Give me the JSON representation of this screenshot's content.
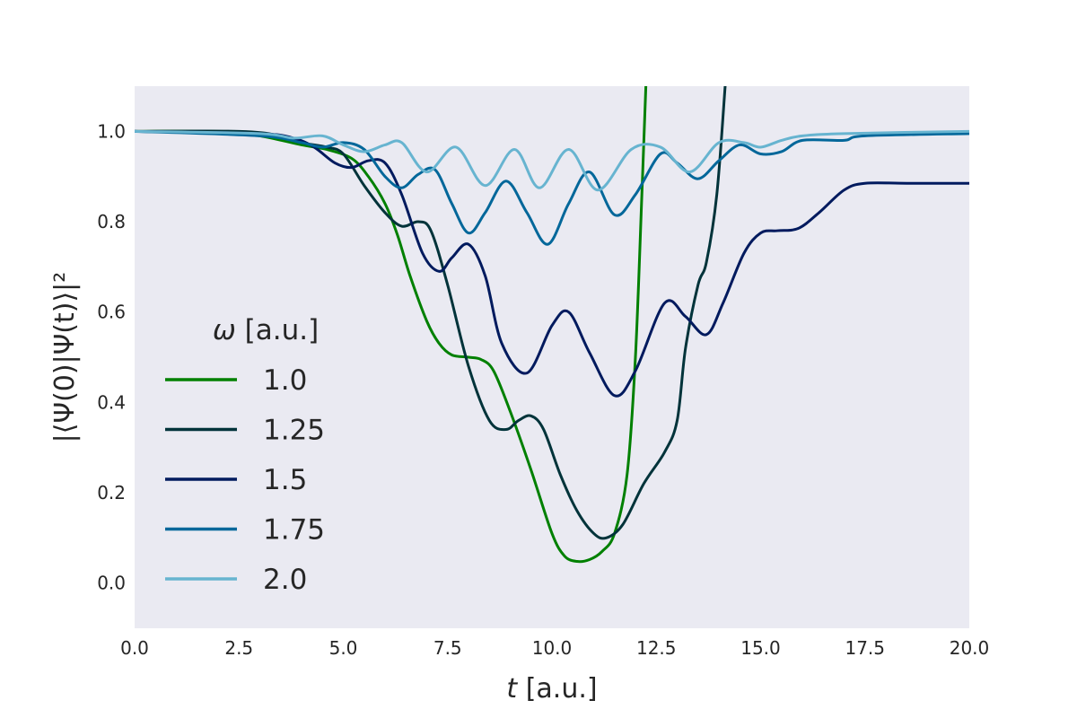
{
  "chart_data": {
    "type": "line",
    "xlabel_var": "t",
    "xlabel_unit": " [a.u.]",
    "ylabel": "|⟨Ψ(0)|Ψ(t)⟩|²",
    "xlim": [
      0,
      20
    ],
    "ylim": [
      -0.1,
      1.1
    ],
    "xticks": [
      0,
      2.5,
      5,
      7.5,
      10,
      12.5,
      15,
      17.5,
      20
    ],
    "xtick_labels": [
      "0.0",
      "2.5",
      "5.0",
      "7.5",
      "10.0",
      "12.5",
      "15.0",
      "17.5",
      "20.0"
    ],
    "yticks": [
      0,
      0.2,
      0.4,
      0.6,
      0.8,
      1.0
    ],
    "ytick_labels": [
      "0.0",
      "0.2",
      "0.4",
      "0.6",
      "0.8",
      "1.0"
    ],
    "grid": false,
    "background": "#eaeaf2",
    "legend": {
      "title_var": "ω",
      "title_unit": " [a.u.]",
      "placement": "center-left"
    },
    "series": [
      {
        "name": "1.0",
        "color": "#008000",
        "points": [
          [
            0,
            1.0
          ],
          [
            2.0,
            1.0
          ],
          [
            3.0,
            0.99
          ],
          [
            4.0,
            0.97
          ],
          [
            4.6,
            0.96
          ],
          [
            5.2,
            0.94
          ],
          [
            5.6,
            0.9
          ],
          [
            6.0,
            0.84
          ],
          [
            6.3,
            0.77
          ],
          [
            6.6,
            0.68
          ],
          [
            7.0,
            0.58
          ],
          [
            7.3,
            0.53
          ],
          [
            7.6,
            0.505
          ],
          [
            8.0,
            0.5
          ],
          [
            8.3,
            0.495
          ],
          [
            8.6,
            0.47
          ],
          [
            9.0,
            0.38
          ],
          [
            9.5,
            0.25
          ],
          [
            10.0,
            0.11
          ],
          [
            10.3,
            0.06
          ],
          [
            10.6,
            0.048
          ],
          [
            10.9,
            0.052
          ],
          [
            11.2,
            0.07
          ],
          [
            11.5,
            0.11
          ],
          [
            11.8,
            0.24
          ],
          [
            12.0,
            0.5
          ],
          [
            12.15,
            0.85
          ],
          [
            12.25,
            1.1
          ]
        ]
      },
      {
        "name": "1.25",
        "color": "#00333a",
        "points": [
          [
            0,
            1.0
          ],
          [
            2.5,
            1.0
          ],
          [
            3.5,
            0.99
          ],
          [
            4.0,
            0.975
          ],
          [
            4.6,
            0.965
          ],
          [
            5.0,
            0.95
          ],
          [
            5.5,
            0.88
          ],
          [
            6.0,
            0.82
          ],
          [
            6.4,
            0.79
          ],
          [
            6.8,
            0.8
          ],
          [
            7.1,
            0.78
          ],
          [
            7.5,
            0.66
          ],
          [
            8.0,
            0.48
          ],
          [
            8.5,
            0.36
          ],
          [
            8.9,
            0.34
          ],
          [
            9.2,
            0.36
          ],
          [
            9.5,
            0.37
          ],
          [
            9.8,
            0.34
          ],
          [
            10.2,
            0.24
          ],
          [
            10.6,
            0.16
          ],
          [
            11.0,
            0.11
          ],
          [
            11.3,
            0.1
          ],
          [
            11.7,
            0.13
          ],
          [
            12.2,
            0.22
          ],
          [
            12.7,
            0.29
          ],
          [
            13.0,
            0.36
          ],
          [
            13.2,
            0.52
          ],
          [
            13.5,
            0.66
          ],
          [
            13.7,
            0.71
          ],
          [
            13.95,
            0.86
          ],
          [
            14.15,
            1.1
          ]
        ]
      },
      {
        "name": "1.5",
        "color": "#001a5e",
        "points": [
          [
            0,
            1.0
          ],
          [
            3.0,
            0.995
          ],
          [
            3.8,
            0.985
          ],
          [
            4.3,
            0.965
          ],
          [
            4.8,
            0.93
          ],
          [
            5.2,
            0.92
          ],
          [
            5.6,
            0.935
          ],
          [
            6.0,
            0.93
          ],
          [
            6.4,
            0.86
          ],
          [
            6.9,
            0.73
          ],
          [
            7.3,
            0.69
          ],
          [
            7.6,
            0.72
          ],
          [
            8.0,
            0.75
          ],
          [
            8.4,
            0.68
          ],
          [
            8.8,
            0.53
          ],
          [
            9.4,
            0.465
          ],
          [
            10.0,
            0.57
          ],
          [
            10.4,
            0.6
          ],
          [
            10.9,
            0.51
          ],
          [
            11.5,
            0.415
          ],
          [
            12.0,
            0.47
          ],
          [
            12.7,
            0.62
          ],
          [
            13.2,
            0.59
          ],
          [
            13.7,
            0.55
          ],
          [
            14.1,
            0.62
          ],
          [
            14.6,
            0.73
          ],
          [
            15.0,
            0.775
          ],
          [
            15.4,
            0.78
          ],
          [
            15.9,
            0.785
          ],
          [
            16.4,
            0.82
          ],
          [
            17.0,
            0.87
          ],
          [
            17.5,
            0.885
          ],
          [
            18.5,
            0.885
          ],
          [
            20.0,
            0.885
          ]
        ]
      },
      {
        "name": "1.75",
        "color": "#02679a",
        "points": [
          [
            0,
            1.0
          ],
          [
            3.0,
            0.99
          ],
          [
            4.0,
            0.975
          ],
          [
            4.5,
            0.965
          ],
          [
            5.0,
            0.975
          ],
          [
            5.5,
            0.96
          ],
          [
            6.0,
            0.9
          ],
          [
            6.4,
            0.875
          ],
          [
            6.8,
            0.905
          ],
          [
            7.2,
            0.915
          ],
          [
            7.6,
            0.84
          ],
          [
            8.0,
            0.775
          ],
          [
            8.4,
            0.82
          ],
          [
            8.9,
            0.89
          ],
          [
            9.4,
            0.82
          ],
          [
            9.9,
            0.75
          ],
          [
            10.4,
            0.84
          ],
          [
            10.9,
            0.91
          ],
          [
            11.5,
            0.815
          ],
          [
            12.0,
            0.86
          ],
          [
            12.6,
            0.95
          ],
          [
            13.0,
            0.93
          ],
          [
            13.5,
            0.895
          ],
          [
            14.0,
            0.935
          ],
          [
            14.5,
            0.97
          ],
          [
            15.0,
            0.95
          ],
          [
            15.5,
            0.955
          ],
          [
            16.0,
            0.98
          ],
          [
            17.0,
            0.98
          ],
          [
            17.5,
            0.99
          ],
          [
            20.0,
            0.995
          ]
        ]
      },
      {
        "name": "2.0",
        "color": "#67b4d0",
        "points": [
          [
            0,
            1.0
          ],
          [
            3.0,
            0.995
          ],
          [
            3.8,
            0.985
          ],
          [
            4.5,
            0.99
          ],
          [
            5.0,
            0.97
          ],
          [
            5.5,
            0.955
          ],
          [
            6.0,
            0.97
          ],
          [
            6.4,
            0.975
          ],
          [
            7.0,
            0.91
          ],
          [
            7.7,
            0.965
          ],
          [
            8.4,
            0.88
          ],
          [
            9.1,
            0.96
          ],
          [
            9.7,
            0.875
          ],
          [
            10.4,
            0.96
          ],
          [
            11.1,
            0.87
          ],
          [
            11.9,
            0.96
          ],
          [
            12.6,
            0.965
          ],
          [
            13.3,
            0.91
          ],
          [
            14.0,
            0.975
          ],
          [
            14.6,
            0.975
          ],
          [
            15.0,
            0.965
          ],
          [
            15.5,
            0.98
          ],
          [
            16.0,
            0.99
          ],
          [
            17.0,
            0.995
          ],
          [
            20.0,
            1.0
          ]
        ]
      }
    ]
  }
}
